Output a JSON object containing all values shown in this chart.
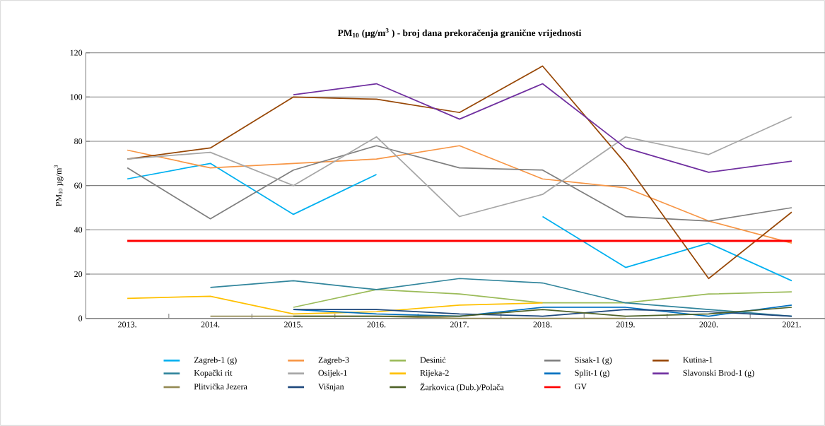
{
  "chart_data": {
    "type": "line",
    "title": "PM$_{10}$ (µg/m$^{3}$ ) - broj dana prekoračenja granične vrijednosti",
    "ylabel": "PM$_{10}$ µg/m$^{3}$",
    "categories": [
      "2013.",
      "2014.",
      "2015.",
      "2016.",
      "2017.",
      "2018.",
      "2019.",
      "2020.",
      "2021."
    ],
    "ylim": [
      0,
      120
    ],
    "yticks": [
      0,
      20,
      40,
      60,
      80,
      100,
      120
    ],
    "grid": "y",
    "legend": "bottom",
    "marker": "none",
    "line_style": "solid",
    "series": [
      {
        "name": "Zagreb-1 (g)",
        "color": "#00b0f0",
        "values": [
          63,
          70,
          47,
          65,
          null,
          46,
          23,
          34,
          17
        ]
      },
      {
        "name": "Zagreb-3",
        "color": "#f79646",
        "values": [
          76,
          68,
          70,
          72,
          78,
          63,
          59,
          44,
          34
        ]
      },
      {
        "name": "Desinić",
        "color": "#9bbb59",
        "values": [
          null,
          null,
          5,
          13,
          11,
          7,
          7,
          11,
          12
        ]
      },
      {
        "name": "Sisak-1 (g)",
        "color": "#7f7f7f",
        "values": [
          68,
          45,
          67,
          78,
          68,
          67,
          46,
          44,
          50
        ]
      },
      {
        "name": "Kutina-1",
        "color": "#984807",
        "values": [
          72,
          77,
          100,
          99,
          93,
          114,
          70,
          18,
          48
        ]
      },
      {
        "name": "Kopački rit",
        "color": "#31859c",
        "values": [
          null,
          14,
          17,
          13,
          18,
          16,
          7,
          4,
          1
        ]
      },
      {
        "name": "Osijek-1",
        "color": "#a6a6a6",
        "values": [
          72,
          75,
          60,
          82,
          46,
          56,
          82,
          74,
          91
        ]
      },
      {
        "name": "Rijeka-2",
        "color": "#ffc000",
        "values": [
          9,
          10,
          2,
          3,
          6,
          7,
          null,
          null,
          null
        ]
      },
      {
        "name": "Split-1 (g)",
        "color": "#0070c0",
        "values": [
          null,
          null,
          4,
          2,
          1,
          5,
          5,
          1,
          6
        ]
      },
      {
        "name": "Slavonski Brod-1 (g)",
        "color": "#7030a0",
        "values": [
          null,
          null,
          101,
          106,
          90,
          106,
          77,
          66,
          71
        ]
      },
      {
        "name": "Plitvička Jezera",
        "color": "#948a54",
        "values": [
          null,
          1,
          1,
          1,
          0,
          0,
          0,
          null,
          null
        ]
      },
      {
        "name": "Višnjan",
        "color": "#1f497d",
        "values": [
          null,
          null,
          4,
          4,
          2,
          1,
          4,
          3,
          1
        ]
      },
      {
        "name": "Žarkovica (Dub.)/Polača",
        "color": "#4f6228",
        "values": [
          null,
          null,
          1,
          1,
          1,
          4,
          1,
          2,
          5
        ]
      },
      {
        "name": "GV",
        "color": "#ff0000",
        "values": [
          35,
          35,
          35,
          35,
          35,
          35,
          35,
          35,
          35
        ]
      }
    ]
  }
}
